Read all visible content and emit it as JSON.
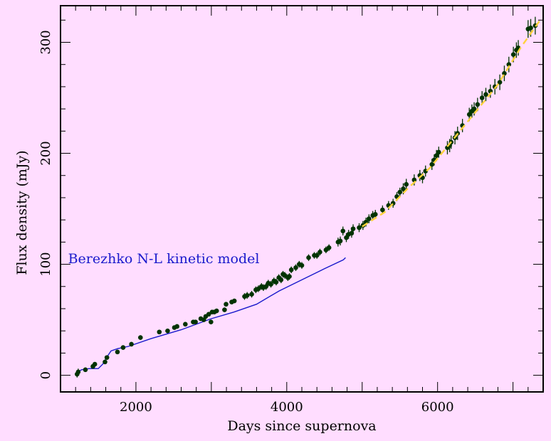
{
  "chart_data": {
    "type": "scatter",
    "title": "",
    "xlabel": "Days since supernova",
    "ylabel": "Flux density (mJy)",
    "xlim": [
      1000,
      7400
    ],
    "ylim": [
      -15,
      333
    ],
    "x_ticks": [
      2000,
      4000,
      6000
    ],
    "y_ticks": [
      0,
      100,
      200,
      300
    ],
    "grid": false,
    "colors": {
      "background": "#ffddff",
      "points": "#003300",
      "model": "#1a1acc",
      "fit": "#ffd23c",
      "axes": "#000000"
    },
    "annotations": [
      {
        "text": "Berezhko N-L kinetic model",
        "x": 1100,
        "y": 105,
        "color": "#1a1acc"
      }
    ],
    "series": [
      {
        "type": "scatter",
        "points": [
          {
            "x": 1220,
            "y": 1,
            "err": 3
          },
          {
            "x": 1235,
            "y": 3,
            "err": 3
          },
          {
            "x": 1330,
            "y": 5,
            "err": 2
          },
          {
            "x": 1430,
            "y": 8,
            "err": 2
          },
          {
            "x": 1455,
            "y": 10,
            "err": 2
          },
          {
            "x": 1590,
            "y": 12,
            "err": 2
          },
          {
            "x": 1615,
            "y": 16,
            "err": 2
          },
          {
            "x": 1755,
            "y": 21,
            "err": 2
          },
          {
            "x": 1830,
            "y": 25,
            "err": 2
          },
          {
            "x": 1940,
            "y": 28,
            "err": 2
          },
          {
            "x": 2060,
            "y": 34,
            "err": 2
          },
          {
            "x": 2310,
            "y": 39,
            "err": 2
          },
          {
            "x": 2420,
            "y": 40,
            "err": 2
          },
          {
            "x": 2510,
            "y": 43,
            "err": 2
          },
          {
            "x": 2545,
            "y": 44,
            "err": 2
          },
          {
            "x": 2655,
            "y": 46,
            "err": 2
          },
          {
            "x": 2760,
            "y": 48,
            "err": 2
          },
          {
            "x": 2790,
            "y": 48,
            "err": 2
          },
          {
            "x": 2860,
            "y": 51,
            "err": 2
          },
          {
            "x": 2900,
            "y": 50,
            "err": 2
          },
          {
            "x": 2925,
            "y": 53,
            "err": 2
          },
          {
            "x": 2965,
            "y": 55,
            "err": 2
          },
          {
            "x": 2995,
            "y": 48,
            "err": 2
          },
          {
            "x": 3010,
            "y": 57,
            "err": 2
          },
          {
            "x": 3040,
            "y": 57,
            "err": 2
          },
          {
            "x": 3070,
            "y": 58,
            "err": 2
          },
          {
            "x": 3175,
            "y": 59,
            "err": 2
          },
          {
            "x": 3195,
            "y": 64,
            "err": 2
          },
          {
            "x": 3270,
            "y": 66,
            "err": 2
          },
          {
            "x": 3305,
            "y": 67,
            "err": 2
          },
          {
            "x": 3440,
            "y": 71,
            "err": 3
          },
          {
            "x": 3475,
            "y": 72,
            "err": 3
          },
          {
            "x": 3535,
            "y": 73,
            "err": 3
          },
          {
            "x": 3590,
            "y": 77,
            "err": 3
          },
          {
            "x": 3625,
            "y": 78,
            "err": 3
          },
          {
            "x": 3665,
            "y": 80,
            "err": 3
          },
          {
            "x": 3690,
            "y": 79,
            "err": 3
          },
          {
            "x": 3725,
            "y": 80,
            "err": 3
          },
          {
            "x": 3755,
            "y": 83,
            "err": 3
          },
          {
            "x": 3790,
            "y": 82,
            "err": 3
          },
          {
            "x": 3830,
            "y": 85,
            "err": 3
          },
          {
            "x": 3860,
            "y": 84,
            "err": 3
          },
          {
            "x": 3895,
            "y": 88,
            "err": 3
          },
          {
            "x": 3925,
            "y": 86,
            "err": 3
          },
          {
            "x": 3950,
            "y": 91,
            "err": 3
          },
          {
            "x": 3975,
            "y": 90,
            "err": 3
          },
          {
            "x": 4015,
            "y": 88,
            "err": 3
          },
          {
            "x": 4035,
            "y": 89,
            "err": 3
          },
          {
            "x": 4060,
            "y": 95,
            "err": 3
          },
          {
            "x": 4120,
            "y": 97,
            "err": 3
          },
          {
            "x": 4165,
            "y": 100,
            "err": 3
          },
          {
            "x": 4200,
            "y": 99,
            "err": 3
          },
          {
            "x": 4290,
            "y": 106,
            "err": 3
          },
          {
            "x": 4365,
            "y": 108,
            "err": 3
          },
          {
            "x": 4400,
            "y": 108,
            "err": 3
          },
          {
            "x": 4440,
            "y": 111,
            "err": 3
          },
          {
            "x": 4520,
            "y": 113,
            "err": 3
          },
          {
            "x": 4560,
            "y": 115,
            "err": 3
          },
          {
            "x": 4680,
            "y": 120,
            "err": 4
          },
          {
            "x": 4710,
            "y": 121,
            "err": 4
          },
          {
            "x": 4745,
            "y": 130,
            "err": 4
          },
          {
            "x": 4790,
            "y": 124,
            "err": 4
          },
          {
            "x": 4820,
            "y": 127,
            "err": 4
          },
          {
            "x": 4860,
            "y": 128,
            "err": 4
          },
          {
            "x": 4880,
            "y": 132,
            "err": 4
          },
          {
            "x": 4960,
            "y": 133,
            "err": 4
          },
          {
            "x": 5010,
            "y": 135,
            "err": 4
          },
          {
            "x": 5050,
            "y": 138,
            "err": 4
          },
          {
            "x": 5090,
            "y": 141,
            "err": 4
          },
          {
            "x": 5140,
            "y": 144,
            "err": 4
          },
          {
            "x": 5175,
            "y": 145,
            "err": 4
          },
          {
            "x": 5270,
            "y": 149,
            "err": 4
          },
          {
            "x": 5350,
            "y": 153,
            "err": 4
          },
          {
            "x": 5410,
            "y": 155,
            "err": 4
          },
          {
            "x": 5460,
            "y": 161,
            "err": 4
          },
          {
            "x": 5500,
            "y": 165,
            "err": 4
          },
          {
            "x": 5545,
            "y": 168,
            "err": 5
          },
          {
            "x": 5585,
            "y": 172,
            "err": 5
          },
          {
            "x": 5690,
            "y": 176,
            "err": 5
          },
          {
            "x": 5765,
            "y": 180,
            "err": 5
          },
          {
            "x": 5800,
            "y": 178,
            "err": 5
          },
          {
            "x": 5840,
            "y": 184,
            "err": 5
          },
          {
            "x": 5925,
            "y": 190,
            "err": 5
          },
          {
            "x": 5955,
            "y": 194,
            "err": 5
          },
          {
            "x": 5985,
            "y": 198,
            "err": 5
          },
          {
            "x": 6015,
            "y": 201,
            "err": 5
          },
          {
            "x": 6130,
            "y": 205,
            "err": 6
          },
          {
            "x": 6160,
            "y": 207,
            "err": 6
          },
          {
            "x": 6180,
            "y": 210,
            "err": 6
          },
          {
            "x": 6230,
            "y": 214,
            "err": 6
          },
          {
            "x": 6265,
            "y": 218,
            "err": 6
          },
          {
            "x": 6330,
            "y": 225,
            "err": 6
          },
          {
            "x": 6420,
            "y": 235,
            "err": 6
          },
          {
            "x": 6455,
            "y": 238,
            "err": 6
          },
          {
            "x": 6485,
            "y": 240,
            "err": 6
          },
          {
            "x": 6530,
            "y": 244,
            "err": 6
          },
          {
            "x": 6590,
            "y": 250,
            "err": 6
          },
          {
            "x": 6640,
            "y": 253,
            "err": 6
          },
          {
            "x": 6700,
            "y": 256,
            "err": 6
          },
          {
            "x": 6760,
            "y": 260,
            "err": 7
          },
          {
            "x": 6825,
            "y": 264,
            "err": 7
          },
          {
            "x": 6885,
            "y": 272,
            "err": 7
          },
          {
            "x": 6945,
            "y": 280,
            "err": 7
          },
          {
            "x": 7005,
            "y": 289,
            "err": 7
          },
          {
            "x": 7045,
            "y": 293,
            "err": 7
          },
          {
            "x": 7070,
            "y": 295,
            "err": 7
          },
          {
            "x": 7200,
            "y": 312,
            "err": 8
          },
          {
            "x": 7235,
            "y": 313,
            "err": 8
          },
          {
            "x": 7295,
            "y": 315,
            "err": 8
          }
        ]
      },
      {
        "type": "line",
        "points": [
          {
            "x": 1200,
            "y": 2
          },
          {
            "x": 1280,
            "y": 5
          },
          {
            "x": 1380,
            "y": 6
          },
          {
            "x": 1500,
            "y": 6
          },
          {
            "x": 1560,
            "y": 10
          },
          {
            "x": 1620,
            "y": 17
          },
          {
            "x": 1670,
            "y": 22
          },
          {
            "x": 1760,
            "y": 24
          },
          {
            "x": 1900,
            "y": 26
          },
          {
            "x": 2200,
            "y": 33
          },
          {
            "x": 2600,
            "y": 41
          },
          {
            "x": 3000,
            "y": 51
          },
          {
            "x": 3300,
            "y": 57
          },
          {
            "x": 3600,
            "y": 64
          },
          {
            "x": 3900,
            "y": 76
          },
          {
            "x": 4200,
            "y": 86
          },
          {
            "x": 4500,
            "y": 96
          },
          {
            "x": 4750,
            "y": 104
          },
          {
            "x": 4780,
            "y": 106
          }
        ]
      },
      {
        "type": "line",
        "style": "dashed",
        "points": [
          {
            "x": 5000,
            "y": 134
          },
          {
            "x": 5300,
            "y": 147
          },
          {
            "x": 5600,
            "y": 168
          },
          {
            "x": 5900,
            "y": 187
          },
          {
            "x": 6200,
            "y": 212
          },
          {
            "x": 6500,
            "y": 237
          },
          {
            "x": 6800,
            "y": 262
          },
          {
            "x": 7100,
            "y": 295
          },
          {
            "x": 7380,
            "y": 322
          }
        ]
      }
    ]
  }
}
